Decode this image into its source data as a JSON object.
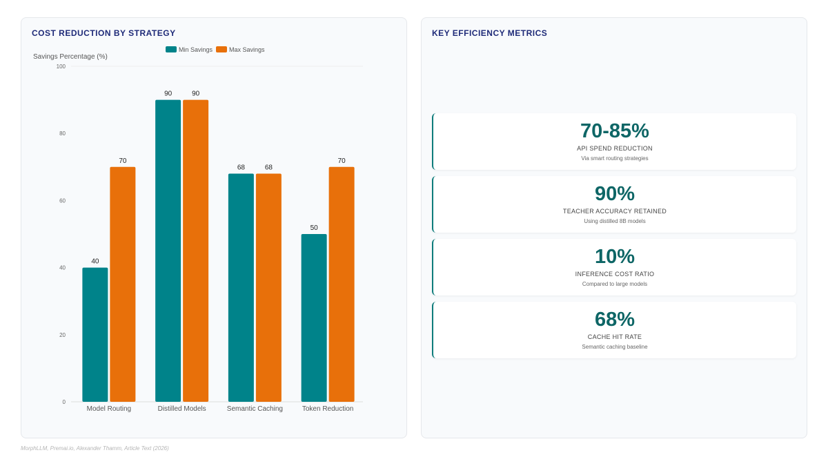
{
  "chart_panel": {
    "title": "COST REDUCTION BY STRATEGY"
  },
  "metrics_panel": {
    "title": "KEY EFFICIENCY METRICS",
    "cards": [
      {
        "value": "70-85%",
        "label": "API SPEND REDUCTION",
        "sub": "Via smart routing strategies"
      },
      {
        "value": "90%",
        "label": "TEACHER ACCURACY RETAINED",
        "sub": "Using distilled 8B models"
      },
      {
        "value": "10%",
        "label": "INFERENCE COST RATIO",
        "sub": "Compared to large models"
      },
      {
        "value": "68%",
        "label": "CACHE HIT RATE",
        "sub": "Semantic caching baseline"
      }
    ]
  },
  "chart_data": {
    "type": "bar",
    "title": "COST REDUCTION BY STRATEGY",
    "ylabel": "Savings Percentage (%)",
    "xlabel": "",
    "ylim": [
      0,
      100
    ],
    "yticks": [
      0,
      20,
      40,
      60,
      80,
      100
    ],
    "categories": [
      "Model Routing",
      "Distilled Models",
      "Semantic Caching",
      "Token Reduction"
    ],
    "series": [
      {
        "name": "Min Savings",
        "values": [
          40,
          90,
          68,
          50
        ],
        "color": "#00838a"
      },
      {
        "name": "Max Savings",
        "values": [
          70,
          90,
          68,
          70
        ],
        "color": "#e8700a"
      }
    ],
    "legend_position": "top-center",
    "grid": false,
    "data_labels": true
  },
  "footer": {
    "source": "MorphLLM, Premai.io, Alexander Thamm, Article Text (2026)"
  }
}
